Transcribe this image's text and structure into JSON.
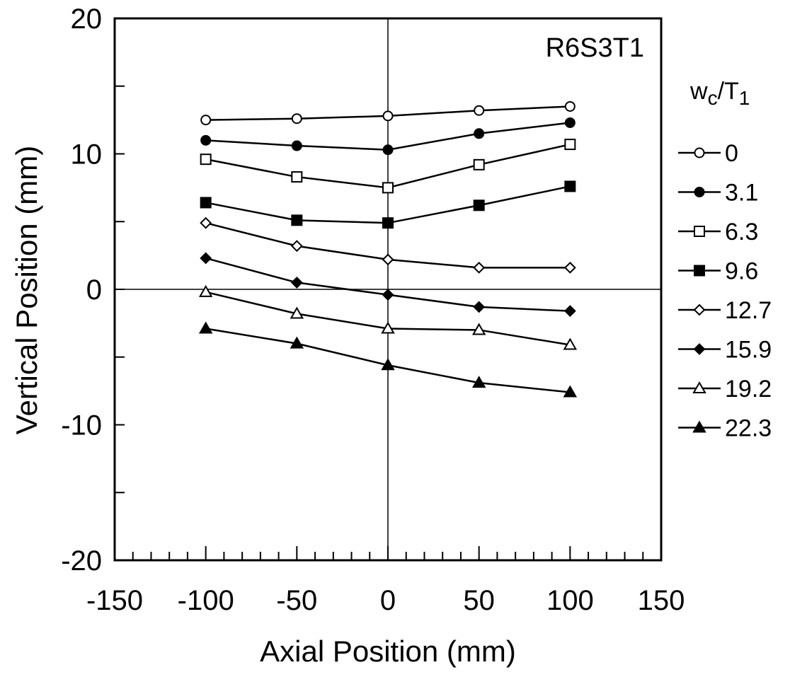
{
  "chart_data": {
    "type": "line",
    "xlabel": "Axial Position (mm)",
    "ylabel": "Vertical Position (mm)",
    "annotation": "R6S3T1",
    "xlim": [
      -150,
      150
    ],
    "ylim": [
      -20,
      20
    ],
    "x_ticks": [
      -150,
      -100,
      -50,
      0,
      50,
      100,
      150
    ],
    "y_ticks": [
      -20,
      -10,
      0,
      10,
      20
    ],
    "y_tick_labels": [
      "-20",
      "-10",
      "0",
      "10",
      "20"
    ],
    "grid": false,
    "reference_lines": {
      "x": 0,
      "y": 0
    },
    "legend": {
      "placement": "right",
      "title_main": "w",
      "title_sub1": "c",
      "title_sep": "/T",
      "title_sub2": "1"
    },
    "x": [
      -100,
      -50,
      0,
      50,
      100
    ],
    "series": [
      {
        "name": "0",
        "marker": "circle-open",
        "values": [
          12.5,
          12.6,
          12.8,
          13.2,
          13.5
        ]
      },
      {
        "name": "3.1",
        "marker": "circle-filled",
        "values": [
          11.0,
          10.6,
          10.3,
          11.5,
          12.3
        ]
      },
      {
        "name": "6.3",
        "marker": "square-open",
        "values": [
          9.6,
          8.3,
          7.5,
          9.2,
          10.7
        ]
      },
      {
        "name": "9.6",
        "marker": "square-filled",
        "values": [
          6.4,
          5.1,
          4.9,
          6.2,
          7.6
        ]
      },
      {
        "name": "12.7",
        "marker": "diamond-open",
        "values": [
          4.9,
          3.2,
          2.2,
          1.6,
          1.6
        ]
      },
      {
        "name": "15.9",
        "marker": "diamond-filled",
        "values": [
          2.3,
          0.5,
          -0.4,
          -1.3,
          -1.6
        ]
      },
      {
        "name": "19.2",
        "marker": "triangle-open",
        "values": [
          -0.2,
          -1.8,
          -2.9,
          -3.0,
          -4.1
        ]
      },
      {
        "name": "22.3",
        "marker": "triangle-filled",
        "values": [
          -2.9,
          -4.0,
          -5.6,
          -6.9,
          -7.6
        ]
      }
    ]
  }
}
